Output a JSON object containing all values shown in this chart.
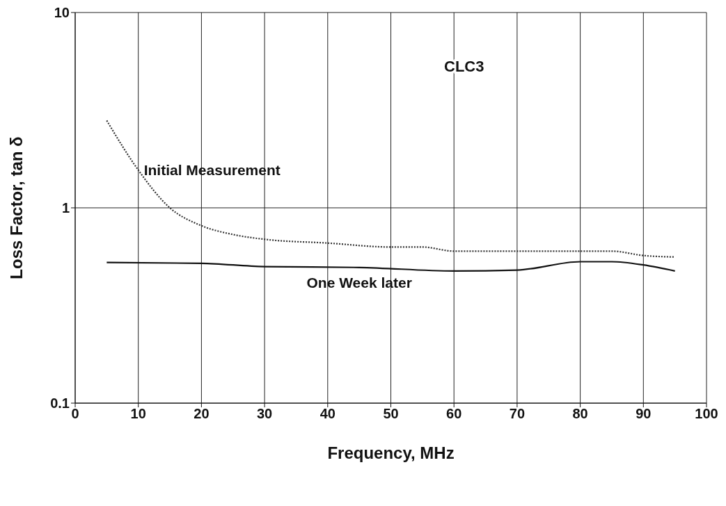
{
  "chart_data": {
    "type": "line",
    "xlabel": "Frequency,  MHz",
    "ylabel": "Loss Factor,  tan δ",
    "xlim": [
      0,
      100
    ],
    "xticks": [
      0,
      10,
      20,
      30,
      40,
      50,
      60,
      70,
      80,
      90,
      100
    ],
    "ylim": [
      0.1,
      10
    ],
    "yticks": [
      0.1,
      1,
      10
    ],
    "log": "y",
    "grid": true,
    "legend": false,
    "marker": "none",
    "series": [
      {
        "name": "Initial Measurement",
        "color": "#333333",
        "line_style": "dotted",
        "x": [
          5,
          10,
          15,
          20,
          25,
          30,
          40,
          50,
          55,
          60,
          70,
          85,
          90,
          95
        ],
        "values": [
          2.8,
          1.56,
          1.0,
          0.81,
          0.73,
          0.69,
          0.66,
          0.63,
          0.63,
          0.6,
          0.6,
          0.6,
          0.57,
          0.56
        ]
      },
      {
        "name": "One Week later",
        "color": "#111111",
        "line_style": "solid",
        "x": [
          5,
          20,
          30,
          45,
          60,
          70,
          80,
          85,
          90,
          95
        ],
        "values": [
          0.525,
          0.52,
          0.5,
          0.495,
          0.475,
          0.48,
          0.53,
          0.53,
          0.51,
          0.475
        ]
      }
    ],
    "annotations": [
      "CLC3"
    ]
  }
}
